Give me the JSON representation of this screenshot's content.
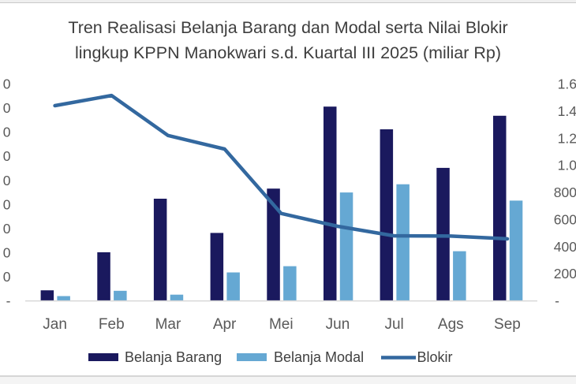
{
  "title": {
    "line1": "Tren Realisasi Belanja Barang dan Modal serta Nilai Blokir",
    "line2": "lingkup KPPN Manokwari s.d. Kuartal III 2025 (miliar Rp)"
  },
  "chart_data": {
    "type": "combo_bar_line",
    "categories": [
      "Jan",
      "Feb",
      "Mar",
      "Apr",
      "Mei",
      "Jun",
      "Jul",
      "Ags",
      "Sep"
    ],
    "bar_series": [
      {
        "name": "Belanja Barang",
        "color": "#1A195E",
        "values": [
          22,
          101,
          212,
          141,
          233,
          403,
          356,
          276,
          384
        ]
      },
      {
        "name": "Belanja Modal",
        "color": "#65A8D3",
        "values": [
          10,
          21,
          13,
          59,
          72,
          225,
          242,
          103,
          208
        ]
      }
    ],
    "line_series": {
      "name": "Blokir",
      "color": "#33689F",
      "axis": "right",
      "values": [
        1440,
        1515,
        1220,
        1120,
        645,
        550,
        480,
        478,
        458
      ]
    },
    "axes": {
      "left": {
        "tick_labels_visible": [
          "0",
          "0",
          "0",
          "0",
          "0",
          "0",
          "0",
          "0",
          "0",
          "-"
        ],
        "min": 0,
        "max": 450,
        "step": 50
      },
      "right": {
        "tick_labels": [
          "1.6",
          "1.4",
          "1.2",
          "1.0",
          "800",
          "600",
          "400",
          "200",
          "-"
        ],
        "min": 0,
        "max": 1600,
        "step": 200
      }
    },
    "legend_position": "bottom",
    "grid": false
  },
  "colors": {
    "axis_line": "#D9D9D9",
    "tick_text": "#595959",
    "title_text": "#3E3E3E"
  }
}
